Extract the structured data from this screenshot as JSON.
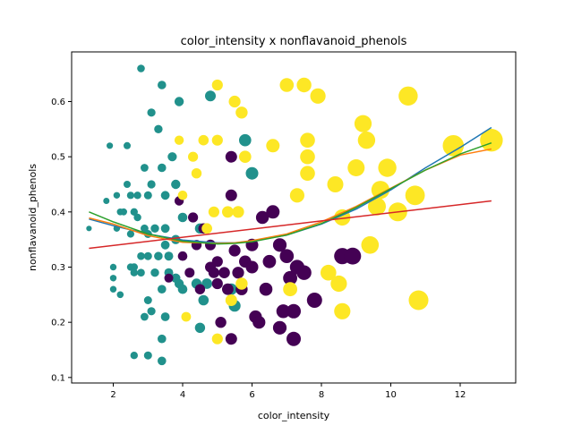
{
  "chart_data": {
    "type": "scatter",
    "title": "color_intensity x nonflavanoid_phenols",
    "xlabel": "color_intensity",
    "ylabel": "nonflavanoid_phenols",
    "xlim": [
      0.8,
      13.6
    ],
    "ylim": [
      0.09,
      0.69
    ],
    "x_ticks": [
      2,
      4,
      6,
      8,
      10,
      12
    ],
    "y_ticks": [
      0.1,
      0.2,
      0.3,
      0.4,
      0.5,
      0.6
    ],
    "x_tick_labels": [
      "2",
      "4",
      "6",
      "8",
      "10",
      "12"
    ],
    "y_tick_labels": [
      "0.1",
      "0.2",
      "0.3",
      "0.4",
      "0.5",
      "0.6"
    ],
    "grid": false,
    "colors": {
      "class_0": "#fde725",
      "class_1": "#21918c",
      "class_2": "#440154",
      "line_blue": "#1f77b4",
      "line_orange": "#ff7f0e",
      "line_green": "#2ca02c",
      "line_red": "#d62728"
    },
    "points": [
      {
        "x": 1.3,
        "y": 0.37,
        "g": 1
      },
      {
        "x": 1.8,
        "y": 0.42,
        "g": 1
      },
      {
        "x": 1.9,
        "y": 0.52,
        "g": 1
      },
      {
        "x": 2.0,
        "y": 0.3,
        "g": 1
      },
      {
        "x": 2.0,
        "y": 0.28,
        "g": 1
      },
      {
        "x": 2.0,
        "y": 0.26,
        "g": 1
      },
      {
        "x": 2.1,
        "y": 0.43,
        "g": 1
      },
      {
        "x": 2.1,
        "y": 0.37,
        "g": 1
      },
      {
        "x": 2.2,
        "y": 0.4,
        "g": 1
      },
      {
        "x": 2.2,
        "y": 0.25,
        "g": 1
      },
      {
        "x": 2.3,
        "y": 0.4,
        "g": 1
      },
      {
        "x": 2.4,
        "y": 0.45,
        "g": 1
      },
      {
        "x": 2.4,
        "y": 0.52,
        "g": 1
      },
      {
        "x": 2.5,
        "y": 0.43,
        "g": 1
      },
      {
        "x": 2.5,
        "y": 0.3,
        "g": 1
      },
      {
        "x": 2.6,
        "y": 0.29,
        "g": 1
      },
      {
        "x": 2.6,
        "y": 0.4,
        "g": 1
      },
      {
        "x": 2.6,
        "y": 0.3,
        "g": 1
      },
      {
        "x": 2.6,
        "y": 0.14,
        "g": 1
      },
      {
        "x": 2.7,
        "y": 0.43,
        "g": 1
      },
      {
        "x": 2.7,
        "y": 0.39,
        "g": 1
      },
      {
        "x": 2.8,
        "y": 0.66,
        "g": 1
      },
      {
        "x": 2.8,
        "y": 0.32,
        "g": 1
      },
      {
        "x": 2.8,
        "y": 0.29,
        "g": 1
      },
      {
        "x": 2.9,
        "y": 0.48,
        "g": 1
      },
      {
        "x": 2.9,
        "y": 0.37,
        "g": 1
      },
      {
        "x": 2.9,
        "y": 0.21,
        "g": 1
      },
      {
        "x": 3.0,
        "y": 0.43,
        "g": 1
      },
      {
        "x": 3.0,
        "y": 0.24,
        "g": 1
      },
      {
        "x": 3.0,
        "y": 0.14,
        "g": 1
      },
      {
        "x": 3.0,
        "y": 0.32,
        "g": 1
      },
      {
        "x": 3.0,
        "y": 0.36,
        "g": 1
      },
      {
        "x": 3.1,
        "y": 0.45,
        "g": 1
      },
      {
        "x": 3.1,
        "y": 0.58,
        "g": 1
      },
      {
        "x": 3.1,
        "y": 0.22,
        "g": 1
      },
      {
        "x": 3.2,
        "y": 0.37,
        "g": 1
      },
      {
        "x": 3.2,
        "y": 0.29,
        "g": 1
      },
      {
        "x": 3.3,
        "y": 0.55,
        "g": 1
      },
      {
        "x": 3.3,
        "y": 0.32,
        "g": 1
      },
      {
        "x": 3.4,
        "y": 0.63,
        "g": 1
      },
      {
        "x": 3.4,
        "y": 0.48,
        "g": 1
      },
      {
        "x": 3.4,
        "y": 0.26,
        "g": 1
      },
      {
        "x": 3.4,
        "y": 0.17,
        "g": 1
      },
      {
        "x": 3.4,
        "y": 0.13,
        "g": 1
      },
      {
        "x": 3.5,
        "y": 0.43,
        "g": 1
      },
      {
        "x": 3.5,
        "y": 0.37,
        "g": 1
      },
      {
        "x": 3.5,
        "y": 0.34,
        "g": 1
      },
      {
        "x": 3.5,
        "y": 0.21,
        "g": 1
      },
      {
        "x": 3.6,
        "y": 0.32,
        "g": 1
      },
      {
        "x": 3.6,
        "y": 0.29,
        "g": 1
      },
      {
        "x": 3.7,
        "y": 0.5,
        "g": 1
      },
      {
        "x": 3.8,
        "y": 0.45,
        "g": 1
      },
      {
        "x": 3.8,
        "y": 0.35,
        "g": 1
      },
      {
        "x": 3.8,
        "y": 0.28,
        "g": 1
      },
      {
        "x": 3.9,
        "y": 0.6,
        "g": 1
      },
      {
        "x": 3.9,
        "y": 0.27,
        "g": 1
      },
      {
        "x": 4.0,
        "y": 0.39,
        "g": 1
      },
      {
        "x": 4.0,
        "y": 0.26,
        "g": 1
      },
      {
        "x": 4.4,
        "y": 0.27,
        "g": 1
      },
      {
        "x": 4.5,
        "y": 0.37,
        "g": 1
      },
      {
        "x": 4.5,
        "y": 0.19,
        "g": 1
      },
      {
        "x": 4.6,
        "y": 0.24,
        "g": 1
      },
      {
        "x": 4.7,
        "y": 0.27,
        "g": 1
      },
      {
        "x": 4.8,
        "y": 0.61,
        "g": 1
      },
      {
        "x": 5.4,
        "y": 0.26,
        "g": 1
      },
      {
        "x": 5.5,
        "y": 0.23,
        "g": 1
      },
      {
        "x": 5.8,
        "y": 0.53,
        "g": 1
      },
      {
        "x": 6.0,
        "y": 0.47,
        "g": 1
      },
      {
        "x": 3.3,
        "y": 0.32,
        "g": 1
      },
      {
        "x": 2.5,
        "y": 0.36,
        "g": 1
      },
      {
        "x": 3.6,
        "y": 0.28,
        "g": 2
      },
      {
        "x": 3.9,
        "y": 0.42,
        "g": 2
      },
      {
        "x": 4.0,
        "y": 0.32,
        "g": 2
      },
      {
        "x": 4.2,
        "y": 0.29,
        "g": 2
      },
      {
        "x": 4.3,
        "y": 0.39,
        "g": 2
      },
      {
        "x": 4.4,
        "y": 0.34,
        "g": 2
      },
      {
        "x": 4.5,
        "y": 0.26,
        "g": 2
      },
      {
        "x": 4.6,
        "y": 0.37,
        "g": 2
      },
      {
        "x": 4.8,
        "y": 0.34,
        "g": 2
      },
      {
        "x": 4.8,
        "y": 0.3,
        "g": 2
      },
      {
        "x": 5.0,
        "y": 0.27,
        "g": 2
      },
      {
        "x": 5.0,
        "y": 0.31,
        "g": 2
      },
      {
        "x": 5.1,
        "y": 0.2,
        "g": 2
      },
      {
        "x": 5.2,
        "y": 0.29,
        "g": 2
      },
      {
        "x": 5.3,
        "y": 0.26,
        "g": 2
      },
      {
        "x": 5.4,
        "y": 0.5,
        "g": 2
      },
      {
        "x": 5.4,
        "y": 0.43,
        "g": 2
      },
      {
        "x": 5.4,
        "y": 0.17,
        "g": 2
      },
      {
        "x": 5.5,
        "y": 0.33,
        "g": 2
      },
      {
        "x": 5.6,
        "y": 0.29,
        "g": 2
      },
      {
        "x": 5.7,
        "y": 0.26,
        "g": 2
      },
      {
        "x": 5.8,
        "y": 0.31,
        "g": 2
      },
      {
        "x": 6.0,
        "y": 0.34,
        "g": 2
      },
      {
        "x": 6.0,
        "y": 0.3,
        "g": 2
      },
      {
        "x": 6.1,
        "y": 0.21,
        "g": 2
      },
      {
        "x": 6.2,
        "y": 0.2,
        "g": 2
      },
      {
        "x": 6.3,
        "y": 0.39,
        "g": 2
      },
      {
        "x": 6.4,
        "y": 0.26,
        "g": 2
      },
      {
        "x": 6.6,
        "y": 0.4,
        "g": 2
      },
      {
        "x": 6.8,
        "y": 0.34,
        "g": 2
      },
      {
        "x": 6.8,
        "y": 0.19,
        "g": 2
      },
      {
        "x": 6.9,
        "y": 0.22,
        "g": 2
      },
      {
        "x": 7.0,
        "y": 0.32,
        "g": 2
      },
      {
        "x": 7.1,
        "y": 0.28,
        "g": 2
      },
      {
        "x": 7.2,
        "y": 0.17,
        "g": 2
      },
      {
        "x": 7.2,
        "y": 0.22,
        "g": 2
      },
      {
        "x": 7.3,
        "y": 0.3,
        "g": 2
      },
      {
        "x": 7.5,
        "y": 0.29,
        "g": 2
      },
      {
        "x": 7.8,
        "y": 0.24,
        "g": 2
      },
      {
        "x": 8.6,
        "y": 0.32,
        "g": 2
      },
      {
        "x": 8.9,
        "y": 0.32,
        "g": 2
      },
      {
        "x": 6.5,
        "y": 0.31,
        "g": 2
      },
      {
        "x": 4.9,
        "y": 0.29,
        "g": 2
      },
      {
        "x": 3.9,
        "y": 0.53,
        "g": 0
      },
      {
        "x": 4.0,
        "y": 0.43,
        "g": 0
      },
      {
        "x": 4.1,
        "y": 0.21,
        "g": 0
      },
      {
        "x": 4.3,
        "y": 0.5,
        "g": 0
      },
      {
        "x": 4.4,
        "y": 0.47,
        "g": 0
      },
      {
        "x": 4.6,
        "y": 0.53,
        "g": 0
      },
      {
        "x": 4.7,
        "y": 0.37,
        "g": 0
      },
      {
        "x": 4.9,
        "y": 0.4,
        "g": 0
      },
      {
        "x": 5.0,
        "y": 0.63,
        "g": 0
      },
      {
        "x": 5.0,
        "y": 0.53,
        "g": 0
      },
      {
        "x": 5.0,
        "y": 0.17,
        "g": 0
      },
      {
        "x": 5.3,
        "y": 0.4,
        "g": 0
      },
      {
        "x": 5.4,
        "y": 0.24,
        "g": 0
      },
      {
        "x": 5.5,
        "y": 0.6,
        "g": 0
      },
      {
        "x": 5.6,
        "y": 0.4,
        "g": 0
      },
      {
        "x": 5.7,
        "y": 0.58,
        "g": 0
      },
      {
        "x": 5.7,
        "y": 0.27,
        "g": 0
      },
      {
        "x": 5.8,
        "y": 0.5,
        "g": 0
      },
      {
        "x": 6.6,
        "y": 0.52,
        "g": 0
      },
      {
        "x": 7.0,
        "y": 0.63,
        "g": 0
      },
      {
        "x": 7.1,
        "y": 0.26,
        "g": 0
      },
      {
        "x": 7.3,
        "y": 0.43,
        "g": 0
      },
      {
        "x": 7.5,
        "y": 0.63,
        "g": 0
      },
      {
        "x": 7.6,
        "y": 0.53,
        "g": 0
      },
      {
        "x": 7.6,
        "y": 0.5,
        "g": 0
      },
      {
        "x": 7.6,
        "y": 0.47,
        "g": 0
      },
      {
        "x": 7.9,
        "y": 0.61,
        "g": 0
      },
      {
        "x": 8.2,
        "y": 0.29,
        "g": 0
      },
      {
        "x": 8.4,
        "y": 0.45,
        "g": 0
      },
      {
        "x": 8.5,
        "y": 0.27,
        "g": 0
      },
      {
        "x": 8.6,
        "y": 0.22,
        "g": 0
      },
      {
        "x": 8.6,
        "y": 0.39,
        "g": 0
      },
      {
        "x": 9.0,
        "y": 0.48,
        "g": 0
      },
      {
        "x": 9.2,
        "y": 0.56,
        "g": 0
      },
      {
        "x": 9.3,
        "y": 0.53,
        "g": 0
      },
      {
        "x": 9.4,
        "y": 0.34,
        "g": 0
      },
      {
        "x": 9.6,
        "y": 0.41,
        "g": 0
      },
      {
        "x": 9.7,
        "y": 0.44,
        "g": 0
      },
      {
        "x": 9.9,
        "y": 0.48,
        "g": 0
      },
      {
        "x": 10.2,
        "y": 0.4,
        "g": 0
      },
      {
        "x": 10.5,
        "y": 0.61,
        "g": 0
      },
      {
        "x": 10.7,
        "y": 0.43,
        "g": 0
      },
      {
        "x": 10.8,
        "y": 0.24,
        "g": 0
      },
      {
        "x": 11.8,
        "y": 0.52,
        "g": 0
      },
      {
        "x": 12.9,
        "y": 0.53,
        "g": 0
      }
    ],
    "series": [
      {
        "color_key": "line_blue",
        "x": [
          1.3,
          2,
          3,
          4,
          5,
          5.5,
          6,
          7,
          8,
          9,
          10,
          11,
          12,
          12.9
        ],
        "y": [
          0.387,
          0.375,
          0.36,
          0.349,
          0.344,
          0.344,
          0.347,
          0.358,
          0.378,
          0.405,
          0.44,
          0.48,
          0.517,
          0.553
        ]
      },
      {
        "color_key": "line_orange",
        "x": [
          1.3,
          2,
          3,
          4,
          5,
          5.5,
          6,
          7,
          8,
          9,
          10,
          11,
          12,
          12.9
        ],
        "y": [
          0.389,
          0.378,
          0.357,
          0.345,
          0.343,
          0.344,
          0.348,
          0.36,
          0.382,
          0.41,
          0.443,
          0.476,
          0.503,
          0.514
        ]
      },
      {
        "color_key": "line_green",
        "x": [
          1.3,
          2,
          3,
          4,
          5,
          5.5,
          6,
          7,
          8,
          9,
          10,
          11,
          12,
          12.9
        ],
        "y": [
          0.4,
          0.382,
          0.36,
          0.347,
          0.342,
          0.343,
          0.346,
          0.358,
          0.379,
          0.408,
          0.442,
          0.476,
          0.505,
          0.525
        ]
      },
      {
        "color_key": "line_red",
        "x": [
          1.3,
          12.9
        ],
        "y": [
          0.334,
          0.42
        ]
      }
    ]
  }
}
